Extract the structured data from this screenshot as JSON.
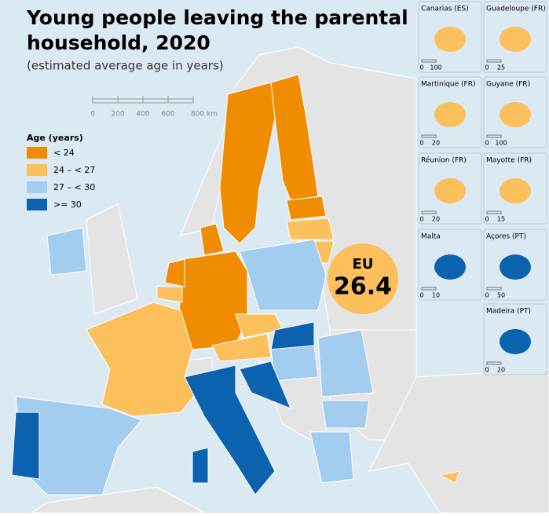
{
  "title": "Young people leaving the parental household, 2020",
  "subtitle": "(estimated average age in years)",
  "scale_bar": {
    "ticks": [
      0,
      200,
      400,
      600,
      {
        "value": 800,
        "label": "800 km"
      }
    ]
  },
  "legend": {
    "title": "Age (years)",
    "items": [
      {
        "label": "< 24",
        "color": "#f08c00"
      },
      {
        "label": "24 – < 27",
        "color": "#fbbf5c"
      },
      {
        "label": "27 – < 30",
        "color": "#a3cdef"
      },
      {
        "label": ">= 30",
        "color": "#0b63b0"
      }
    ]
  },
  "eu_badge": {
    "label": "EU",
    "value": 26.4
  },
  "insets": [
    {
      "name": "Canarias (ES)",
      "scale": [
        0,
        100
      ]
    },
    {
      "name": "Guadeloupe (FR)",
      "scale": [
        0,
        25
      ]
    },
    {
      "name": "Martinique (FR)",
      "scale": [
        0,
        20
      ]
    },
    {
      "name": "Guyane (FR)",
      "scale": [
        0,
        100
      ]
    },
    {
      "name": "Réunion (FR)",
      "scale": [
        0,
        20
      ]
    },
    {
      "name": "Mayotte (FR)",
      "scale": [
        0,
        15
      ]
    },
    {
      "name": "Malta",
      "scale": [
        0,
        10
      ]
    },
    {
      "name": "Açores (PT)",
      "scale": [
        0,
        50
      ]
    },
    {
      "name": "Madeira (PT)",
      "scale": [
        0,
        20
      ]
    }
  ]
}
